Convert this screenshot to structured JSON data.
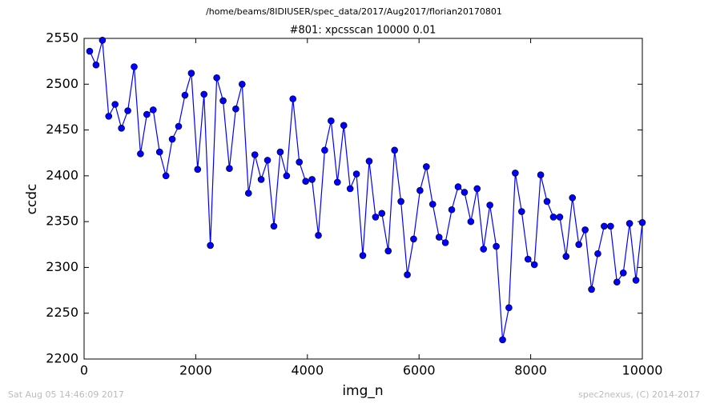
{
  "chart_data": {
    "type": "line",
    "header": "/home/beams/8IDIUSER/spec_data/2017/Aug2017/florian20170801",
    "title": "#801: xpcsscan 10000 0.01",
    "xlabel": "img_n",
    "ylabel": "ccdc",
    "x": [
      100,
      214,
      328,
      441,
      555,
      669,
      783,
      897,
      1010,
      1124,
      1238,
      1352,
      1466,
      1579,
      1693,
      1807,
      1921,
      2034,
      2148,
      2262,
      2376,
      2490,
      2603,
      2717,
      2831,
      2945,
      3059,
      3172,
      3286,
      3400,
      3514,
      3628,
      3741,
      3855,
      3969,
      4083,
      4197,
      4310,
      4424,
      4538,
      4652,
      4766,
      4879,
      4993,
      5107,
      5221,
      5334,
      5448,
      5562,
      5676,
      5790,
      5903,
      6017,
      6131,
      6245,
      6359,
      6472,
      6586,
      6700,
      6814,
      6928,
      7041,
      7155,
      7269,
      7383,
      7497,
      7610,
      7724,
      7838,
      7952,
      8066,
      8179,
      8293,
      8407,
      8521,
      8634,
      8748,
      8862,
      8976,
      9090,
      9203,
      9317,
      9431,
      9545,
      9659,
      9772,
      9886,
      10000
    ],
    "values": [
      2536,
      2521,
      2548,
      2465,
      2478,
      2452,
      2471,
      2519,
      2424,
      2467,
      2472,
      2426,
      2400,
      2440,
      2454,
      2488,
      2512,
      2407,
      2489,
      2324,
      2507,
      2482,
      2408,
      2473,
      2500,
      2381,
      2423,
      2396,
      2417,
      2345,
      2426,
      2400,
      2484,
      2415,
      2394,
      2396,
      2335,
      2428,
      2460,
      2393,
      2455,
      2386,
      2402,
      2313,
      2416,
      2355,
      2359,
      2318,
      2428,
      2372,
      2292,
      2331,
      2384,
      2410,
      2369,
      2333,
      2327,
      2363,
      2388,
      2382,
      2350,
      2386,
      2320,
      2368,
      2323,
      2221,
      2256,
      2403,
      2361,
      2309,
      2303,
      2401,
      2372,
      2355,
      2355,
      2312,
      2376,
      2325,
      2341,
      2276,
      2315,
      2345,
      2345,
      2284,
      2294,
      2348,
      2286,
      2349
    ],
    "color": "#0000ff",
    "xlim": [
      0,
      10000
    ],
    "xticks": [
      0,
      2000,
      4000,
      6000,
      8000,
      10000
    ],
    "ylim": [
      2200,
      2550
    ],
    "yticks": [
      2200,
      2250,
      2300,
      2350,
      2400,
      2450,
      2500,
      2550
    ]
  },
  "footer_left": "Sat Aug 05 14:46:09 2017",
  "footer_right": "spec2nexus, (C) 2014-2017"
}
